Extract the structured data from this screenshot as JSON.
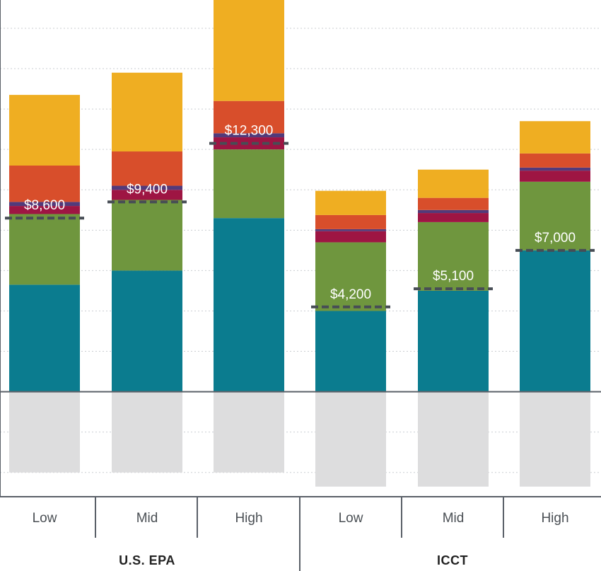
{
  "chart_data": {
    "type": "bar",
    "stacked": true,
    "title": "",
    "xlabel": "",
    "ylabel": "",
    "y_axis_tick_labels_shown": false,
    "grid": "horizontal dotted",
    "groups": [
      {
        "label": "U.S. EPA",
        "categories": [
          "Low",
          "Mid",
          "High"
        ]
      },
      {
        "label": "ICCT",
        "categories": [
          "Low",
          "Mid",
          "High"
        ]
      }
    ],
    "categories": [
      "Low",
      "Mid",
      "High",
      "Low",
      "Mid",
      "High"
    ],
    "series": [
      {
        "color": "#0B7C8F",
        "values": [
          5300,
          6000,
          8600,
          4000,
          5000,
          7000
        ]
      },
      {
        "color": "#6F963E",
        "values": [
          3500,
          3500,
          3400,
          3400,
          3400,
          3400
        ]
      },
      {
        "color": "#9E1543",
        "values": [
          400,
          500,
          600,
          550,
          450,
          550
        ]
      },
      {
        "color": "#523A7A",
        "values": [
          200,
          200,
          200,
          100,
          150,
          150
        ]
      },
      {
        "color": "#D84E2B",
        "values": [
          1800,
          1700,
          1600,
          700,
          600,
          700
        ]
      },
      {
        "color": "#EFAE22",
        "values": [
          3500,
          3900,
          5000,
          1200,
          1400,
          1600
        ]
      },
      {
        "color": "#DDDDDE",
        "values": [
          -4000,
          -4000,
          -4000,
          -4700,
          -4700,
          -4700
        ]
      }
    ],
    "net_markers": [
      8600,
      9400,
      12300,
      4200,
      5100,
      7000
    ],
    "net_labels": [
      "$8,600",
      "$9,400",
      "$12,300",
      "$4,200",
      "$5,100",
      "$7,000"
    ],
    "ylim": [
      -5200,
      19400
    ]
  }
}
